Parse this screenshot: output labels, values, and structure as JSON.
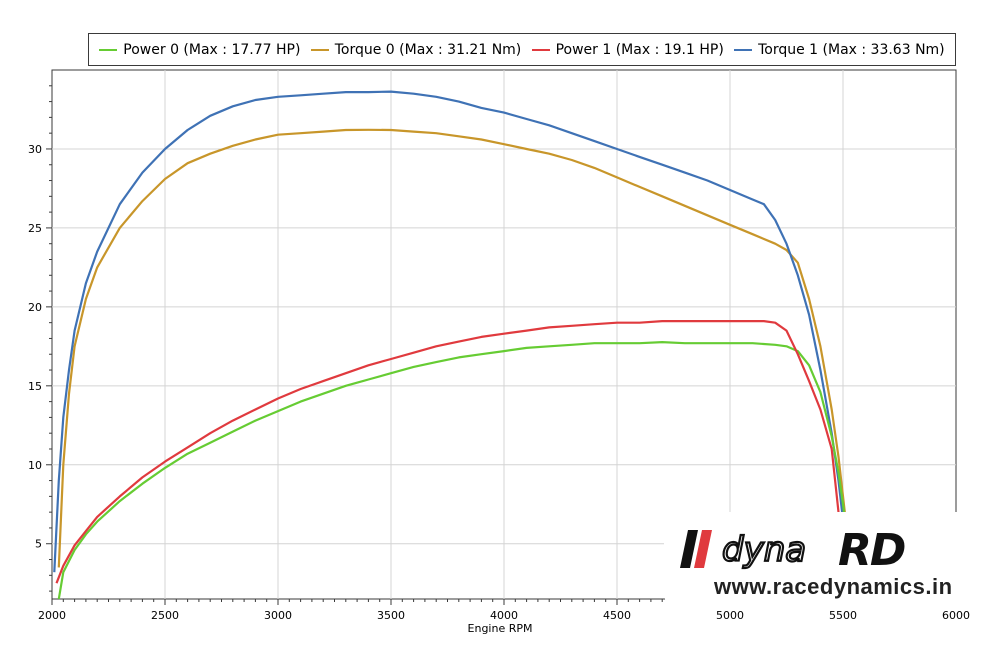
{
  "chart_data": {
    "type": "line",
    "xlabel": "Engine RPM",
    "ylabel": "",
    "xlim": [
      2000,
      6000
    ],
    "ylim": [
      1.5,
      35
    ],
    "xticks": [
      2000,
      2500,
      3000,
      3500,
      4000,
      4500,
      5000,
      5500,
      6000
    ],
    "yticks": [
      5,
      10,
      15,
      20,
      25,
      30
    ],
    "grid": true,
    "legend_position": "top",
    "series": [
      {
        "name": "Power 0 (Max : 17.77 HP)",
        "color": "#66cc33",
        "x": [
          2030,
          2050,
          2100,
          2150,
          2200,
          2300,
          2400,
          2500,
          2600,
          2700,
          2800,
          2900,
          3000,
          3100,
          3200,
          3300,
          3400,
          3500,
          3600,
          3700,
          3800,
          3900,
          4000,
          4100,
          4200,
          4300,
          4400,
          4500,
          4600,
          4700,
          4800,
          4900,
          5000,
          5100,
          5200,
          5250,
          5300,
          5350,
          5400,
          5450,
          5480,
          5500,
          5520
        ],
        "y": [
          1.5,
          3.2,
          4.6,
          5.6,
          6.4,
          7.7,
          8.8,
          9.8,
          10.7,
          11.4,
          12.1,
          12.8,
          13.4,
          14.0,
          14.5,
          15.0,
          15.4,
          15.8,
          16.2,
          16.5,
          16.8,
          17.0,
          17.2,
          17.4,
          17.5,
          17.6,
          17.7,
          17.7,
          17.7,
          17.77,
          17.7,
          17.7,
          17.7,
          17.7,
          17.6,
          17.5,
          17.2,
          16.3,
          14.6,
          11.8,
          9.5,
          7.5,
          5.2
        ]
      },
      {
        "name": "Torque 0 (Max : 31.21 Nm)",
        "color": "#c8962a",
        "x": [
          2030,
          2050,
          2075,
          2100,
          2150,
          2200,
          2300,
          2400,
          2500,
          2600,
          2700,
          2800,
          2900,
          3000,
          3100,
          3200,
          3300,
          3400,
          3500,
          3600,
          3700,
          3800,
          3900,
          4000,
          4100,
          4200,
          4300,
          4400,
          4500,
          4600,
          4700,
          4800,
          4900,
          5000,
          5100,
          5200,
          5250,
          5300,
          5350,
          5400,
          5450,
          5480,
          5500,
          5520,
          5540
        ],
        "y": [
          3.5,
          10.0,
          14.5,
          17.5,
          20.5,
          22.5,
          25.0,
          26.7,
          28.1,
          29.1,
          29.7,
          30.2,
          30.6,
          30.9,
          31.0,
          31.1,
          31.2,
          31.21,
          31.2,
          31.1,
          31.0,
          30.8,
          30.6,
          30.3,
          30.0,
          29.7,
          29.3,
          28.8,
          28.2,
          27.6,
          27.0,
          26.4,
          25.8,
          25.2,
          24.6,
          24.0,
          23.6,
          22.8,
          20.5,
          17.5,
          13.5,
          10.5,
          8.0,
          5.5,
          4.0
        ]
      },
      {
        "name": "Power 1 (Max : 19.1 HP)",
        "color": "#e03a3e",
        "x": [
          2020,
          2050,
          2100,
          2150,
          2200,
          2300,
          2400,
          2500,
          2600,
          2700,
          2800,
          2900,
          3000,
          3100,
          3200,
          3300,
          3400,
          3500,
          3600,
          3700,
          3800,
          3900,
          4000,
          4100,
          4200,
          4300,
          4400,
          4500,
          4600,
          4700,
          4800,
          4900,
          5000,
          5100,
          5150,
          5200,
          5250,
          5300,
          5350,
          5400,
          5450,
          5480
        ],
        "y": [
          2.5,
          3.6,
          4.9,
          5.8,
          6.7,
          8.0,
          9.2,
          10.2,
          11.1,
          12.0,
          12.8,
          13.5,
          14.2,
          14.8,
          15.3,
          15.8,
          16.3,
          16.7,
          17.1,
          17.5,
          17.8,
          18.1,
          18.3,
          18.5,
          18.7,
          18.8,
          18.9,
          19.0,
          19.0,
          19.1,
          19.1,
          19.1,
          19.1,
          19.1,
          19.1,
          19.0,
          18.5,
          17.0,
          15.3,
          13.5,
          11.0,
          7.0
        ]
      },
      {
        "name": "Torque 1 (Max : 33.63 Nm)",
        "color": "#3f72b5",
        "x": [
          2010,
          2030,
          2050,
          2075,
          2100,
          2150,
          2200,
          2300,
          2400,
          2500,
          2600,
          2700,
          2800,
          2900,
          3000,
          3100,
          3200,
          3300,
          3400,
          3500,
          3600,
          3700,
          3800,
          3900,
          4000,
          4100,
          4200,
          4300,
          4400,
          4500,
          4600,
          4700,
          4800,
          4900,
          5000,
          5100,
          5150,
          5200,
          5250,
          5300,
          5350,
          5400,
          5450,
          5480,
          5500,
          5510
        ],
        "y": [
          3.2,
          9.0,
          13.0,
          16.0,
          18.5,
          21.5,
          23.5,
          26.5,
          28.5,
          30.0,
          31.2,
          32.1,
          32.7,
          33.1,
          33.3,
          33.4,
          33.5,
          33.6,
          33.6,
          33.63,
          33.5,
          33.3,
          33.0,
          32.6,
          32.3,
          31.9,
          31.5,
          31.0,
          30.5,
          30.0,
          29.5,
          29.0,
          28.5,
          28.0,
          27.4,
          26.8,
          26.5,
          25.5,
          24.0,
          22.0,
          19.5,
          16.0,
          12.0,
          9.0,
          6.5,
          5.0
        ]
      }
    ]
  },
  "logo": {
    "brand": "dynaRD",
    "url": "www.racedynamics.in"
  }
}
